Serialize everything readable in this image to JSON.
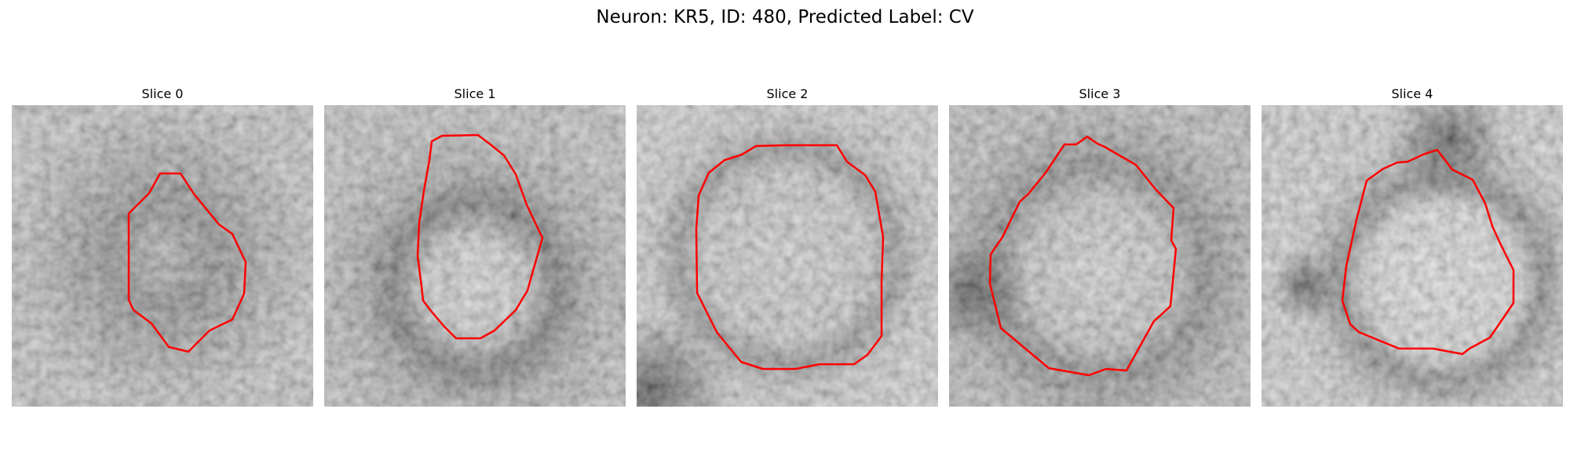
{
  "figure": {
    "title": "Neuron: KR5, ID: 480, Predicted Label: CV"
  },
  "contour_color": "#ff0000",
  "slices": [
    {
      "title": "Slice 0"
    },
    {
      "title": "Slice 1"
    },
    {
      "title": "Slice 2"
    },
    {
      "title": "Slice 3"
    },
    {
      "title": "Slice 4"
    }
  ]
}
